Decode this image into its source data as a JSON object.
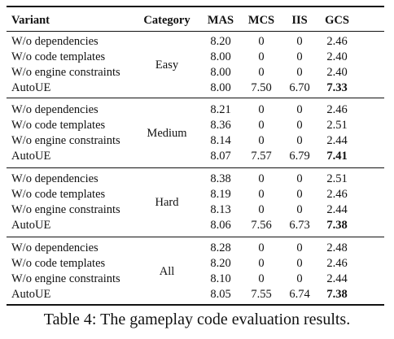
{
  "header": [
    "Variant",
    "Category",
    "MAS",
    "MCS",
    "IIS",
    "GCS"
  ],
  "groups": [
    {
      "category": "Easy",
      "rows": [
        [
          "W/o dependencies",
          "8.20",
          "0",
          "0",
          "2.46"
        ],
        [
          "W/o code templates",
          "8.00",
          "0",
          "0",
          "2.40"
        ],
        [
          "W/o engine constraints",
          "8.00",
          "0",
          "0",
          "2.40"
        ],
        [
          "AutoUE",
          "8.00",
          "7.50",
          "6.70",
          "7.33"
        ]
      ]
    },
    {
      "category": "Medium",
      "rows": [
        [
          "W/o dependencies",
          "8.21",
          "0",
          "0",
          "2.46"
        ],
        [
          "W/o code templates",
          "8.36",
          "0",
          "0",
          "2.51"
        ],
        [
          "W/o engine constraints",
          "8.14",
          "0",
          "0",
          "2.44"
        ],
        [
          "AutoUE",
          "8.07",
          "7.57",
          "6.79",
          "7.41"
        ]
      ]
    },
    {
      "category": "Hard",
      "rows": [
        [
          "W/o dependencies",
          "8.38",
          "0",
          "0",
          "2.51"
        ],
        [
          "W/o code templates",
          "8.19",
          "0",
          "0",
          "2.46"
        ],
        [
          "W/o engine constraints",
          "8.13",
          "0",
          "0",
          "2.44"
        ],
        [
          "AutoUE",
          "8.06",
          "7.56",
          "6.73",
          "7.38"
        ]
      ]
    },
    {
      "category": "All",
      "rows": [
        [
          "W/o dependencies",
          "8.28",
          "0",
          "0",
          "2.48"
        ],
        [
          "W/o code templates",
          "8.20",
          "0",
          "0",
          "2.46"
        ],
        [
          "W/o engine constraints",
          "8.10",
          "0",
          "0",
          "2.44"
        ],
        [
          "AutoUE",
          "8.05",
          "7.55",
          "6.74",
          "7.38"
        ]
      ]
    }
  ],
  "caption": "Table 4: The gameplay code evaluation results."
}
